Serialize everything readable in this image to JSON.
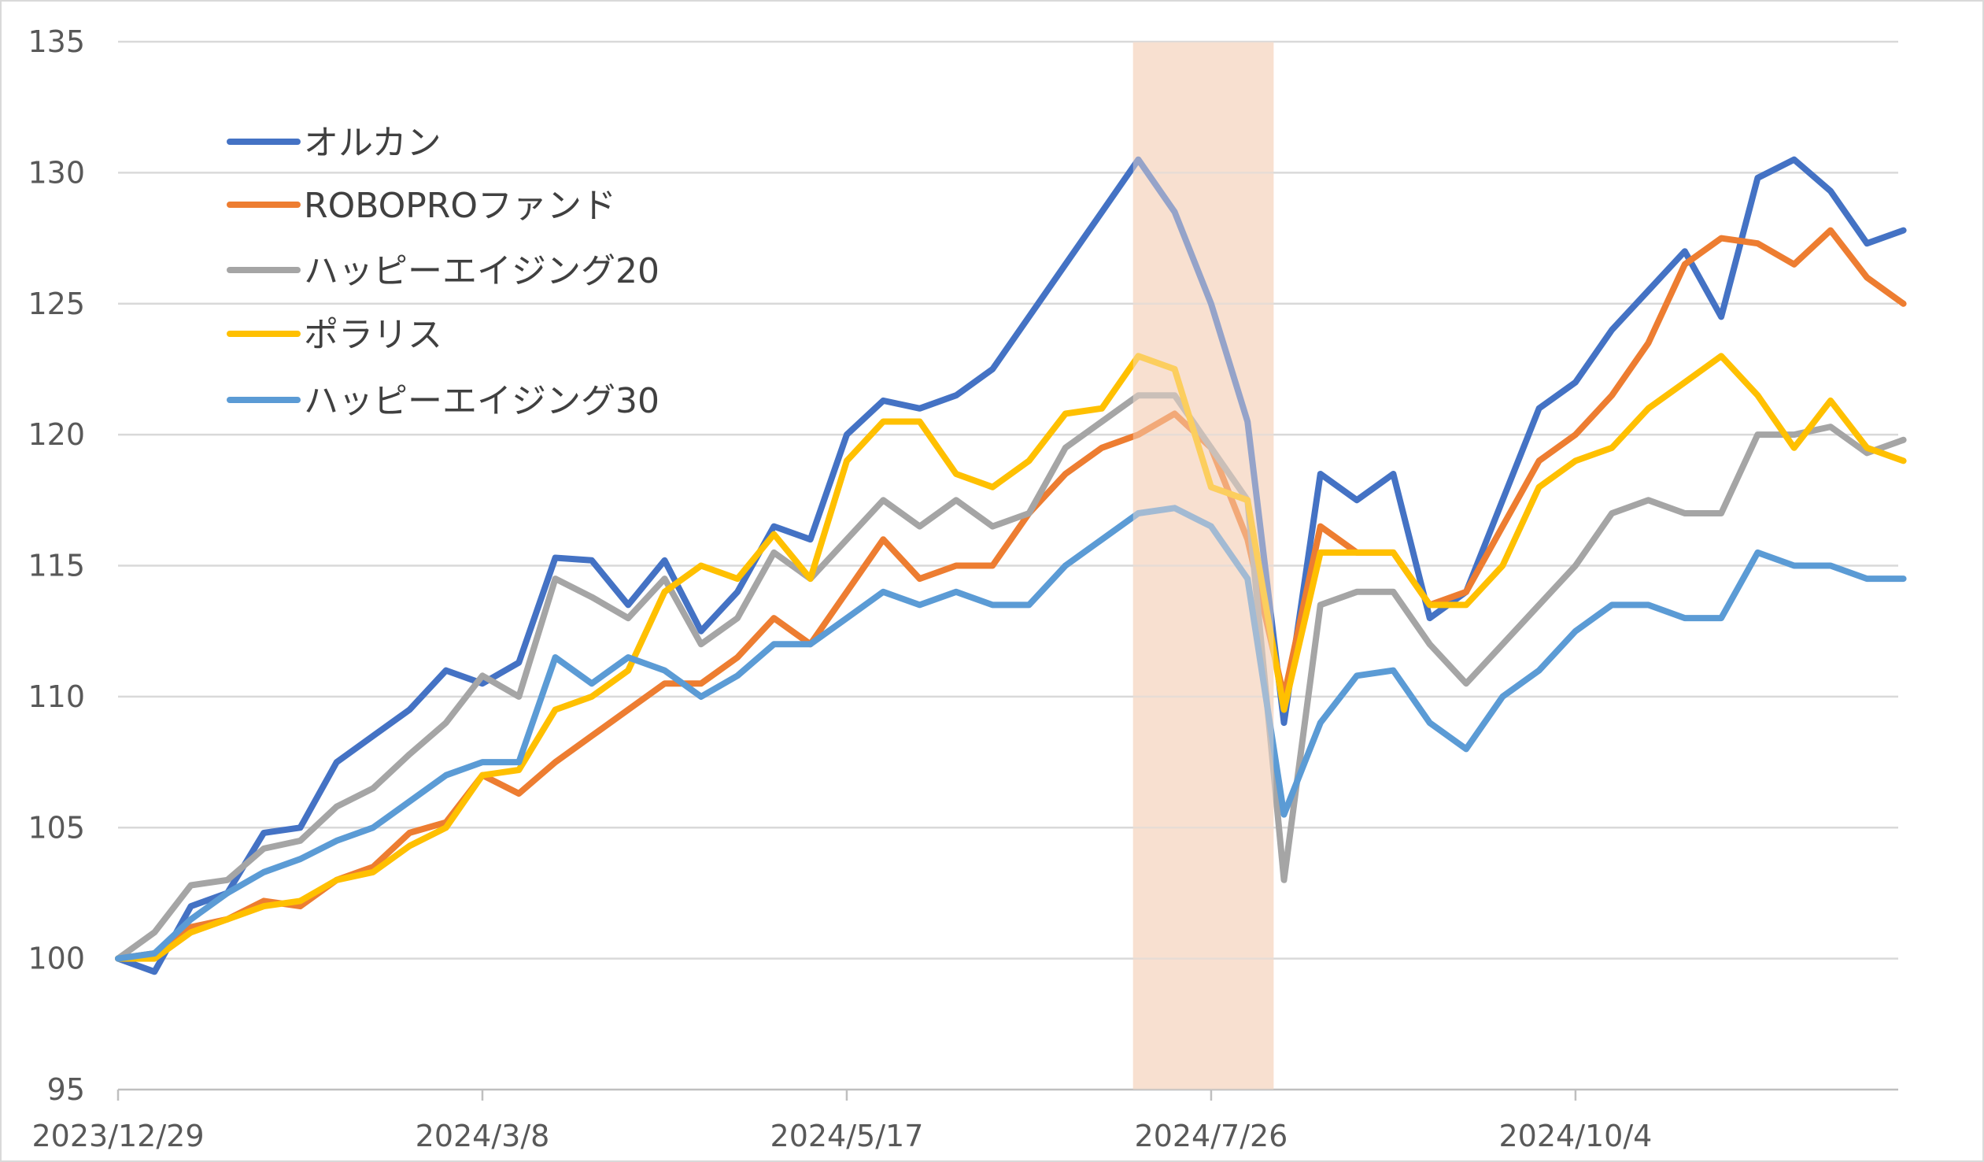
{
  "chart_data": {
    "type": "line",
    "title": "",
    "xlabel": "",
    "ylabel": "",
    "ylim": [
      95,
      135
    ],
    "y_ticks": [
      "95",
      "100",
      "105",
      "110",
      "115",
      "120",
      "125",
      "130",
      "135"
    ],
    "x_ticks": [
      "2023/12/29",
      "2024/3/8",
      "2024/5/17",
      "2024/7/26",
      "2024/10/4"
    ],
    "grid": true,
    "legend": "top-left",
    "highlight": {
      "from": "2024/7/11",
      "to": "2024/8/7",
      "color": "#F8E0D0"
    },
    "x": [
      "2023/12/29",
      "2024/1/5",
      "2024/1/12",
      "2024/1/19",
      "2024/1/26",
      "2024/2/2",
      "2024/2/9",
      "2024/2/16",
      "2024/2/23",
      "2024/3/1",
      "2024/3/8",
      "2024/3/15",
      "2024/3/22",
      "2024/3/29",
      "2024/4/5",
      "2024/4/12",
      "2024/4/19",
      "2024/4/26",
      "2024/5/3",
      "2024/5/10",
      "2024/5/17",
      "2024/5/24",
      "2024/5/31",
      "2024/6/7",
      "2024/6/14",
      "2024/6/21",
      "2024/6/28",
      "2024/7/5",
      "2024/7/12",
      "2024/7/19",
      "2024/7/26",
      "2024/8/2",
      "2024/8/9",
      "2024/8/16",
      "2024/8/23",
      "2024/8/30",
      "2024/9/6",
      "2024/9/13",
      "2024/9/20",
      "2024/9/27",
      "2024/10/4",
      "2024/10/11",
      "2024/10/18",
      "2024/10/25",
      "2024/11/1",
      "2024/11/8",
      "2024/11/15",
      "2024/11/22",
      "2024/11/29",
      "2024/12/6"
    ],
    "series": [
      {
        "name": "オルカン",
        "color": "#4472C4",
        "values": [
          100,
          99.5,
          102,
          102.5,
          104.8,
          105,
          107.5,
          108.5,
          109.5,
          111,
          110.5,
          111.3,
          115.3,
          115.2,
          113.5,
          115.2,
          112.5,
          114,
          116.5,
          116,
          120,
          121.3,
          121,
          121.5,
          122.5,
          124.5,
          126.5,
          128.5,
          130.5,
          128.5,
          125,
          120.5,
          109,
          118.5,
          117.5,
          118.5,
          113,
          114,
          117.5,
          121,
          122,
          124,
          125.5,
          127,
          124.5,
          129.8,
          130.5,
          129.3,
          127.3,
          127.8
        ]
      },
      {
        "name": "ROBOPROファンド",
        "color": "#ED7D31",
        "values": [
          100,
          100.2,
          101.2,
          101.5,
          102.2,
          102,
          103,
          103.5,
          104.8,
          105.2,
          107,
          106.3,
          107.5,
          108.5,
          109.5,
          110.5,
          110.5,
          111.5,
          113,
          112,
          114,
          116,
          114.5,
          115,
          115,
          117,
          118.5,
          119.5,
          120,
          120.8,
          119.5,
          116,
          110,
          116.5,
          115.5,
          115.5,
          113.5,
          114,
          116.5,
          119,
          120,
          121.5,
          123.5,
          126.5,
          127.5,
          127.3,
          126.5,
          127.8,
          126,
          125
        ]
      },
      {
        "name": "ハッピーエイジング20",
        "color": "#A5A5A5",
        "values": [
          100,
          101,
          102.8,
          103,
          104.2,
          104.5,
          105.8,
          106.5,
          107.8,
          109,
          110.8,
          110,
          114.5,
          113.8,
          113,
          114.5,
          112,
          113,
          115.5,
          114.5,
          116,
          117.5,
          116.5,
          117.5,
          116.5,
          117,
          119.5,
          120.5,
          121.5,
          121.5,
          119.5,
          117.5,
          103,
          113.5,
          114,
          114,
          112,
          110.5,
          112,
          113.5,
          115,
          117,
          117.5,
          117,
          117,
          120,
          120,
          120.3,
          119.3,
          119.8
        ]
      },
      {
        "name": "ポラリス",
        "color": "#FFC000",
        "values": [
          100,
          100,
          101,
          101.5,
          102,
          102.2,
          103,
          103.3,
          104.3,
          105,
          107,
          107.2,
          109.5,
          110,
          111,
          114,
          115,
          114.5,
          116.2,
          114.5,
          119,
          120.5,
          120.5,
          118.5,
          118,
          119,
          120.8,
          121,
          123,
          122.5,
          118,
          117.5,
          109.5,
          115.5,
          115.5,
          115.5,
          113.5,
          113.5,
          115,
          118,
          119,
          119.5,
          121,
          122,
          123,
          121.5,
          119.5,
          121.3,
          119.5,
          119
        ]
      },
      {
        "name": "ハッピーエイジング30",
        "color": "#5B9BD5",
        "values": [
          100,
          100.2,
          101.5,
          102.5,
          103.3,
          103.8,
          104.5,
          105,
          106,
          107,
          107.5,
          107.5,
          111.5,
          110.5,
          111.5,
          111,
          110,
          110.8,
          112,
          112,
          113,
          114,
          113.5,
          114,
          113.5,
          113.5,
          115,
          116,
          117,
          117.2,
          116.5,
          114.5,
          105.5,
          109,
          110.8,
          111,
          109,
          108,
          110,
          111,
          112.5,
          113.5,
          113.5,
          113,
          113,
          115.5,
          115,
          115,
          114.5,
          114.5
        ]
      }
    ]
  }
}
